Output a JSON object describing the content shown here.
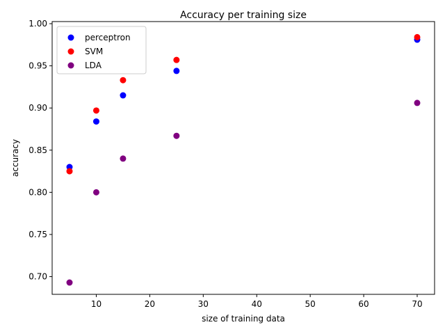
{
  "chart_data": {
    "type": "scatter",
    "title": "Accuracy per training size",
    "xlabel": "size of training data",
    "ylabel": "accuracy",
    "xlim": [
      1.75,
      73.25
    ],
    "ylim": [
      0.679,
      1.0025
    ],
    "xticks": [
      10,
      20,
      30,
      40,
      50,
      60,
      70
    ],
    "yticks": [
      0.7,
      0.75,
      0.8,
      0.85,
      0.9,
      0.95,
      1.0
    ],
    "ytick_labels": [
      "0.70",
      "0.75",
      "0.80",
      "0.85",
      "0.90",
      "0.95",
      "1.00"
    ],
    "grid": false,
    "legend_position": "upper-left",
    "series": [
      {
        "name": "perceptron",
        "color": "#0000ff",
        "x": [
          5,
          10,
          15,
          25,
          70
        ],
        "y": [
          0.83,
          0.884,
          0.915,
          0.944,
          0.981
        ]
      },
      {
        "name": "SVM",
        "color": "#ff0000",
        "x": [
          5,
          10,
          15,
          25,
          70
        ],
        "y": [
          0.825,
          0.897,
          0.933,
          0.957,
          0.984
        ]
      },
      {
        "name": "LDA",
        "color": "#800080",
        "x": [
          5,
          10,
          15,
          25,
          70
        ],
        "y": [
          0.693,
          0.8,
          0.84,
          0.867,
          0.906
        ]
      }
    ]
  }
}
